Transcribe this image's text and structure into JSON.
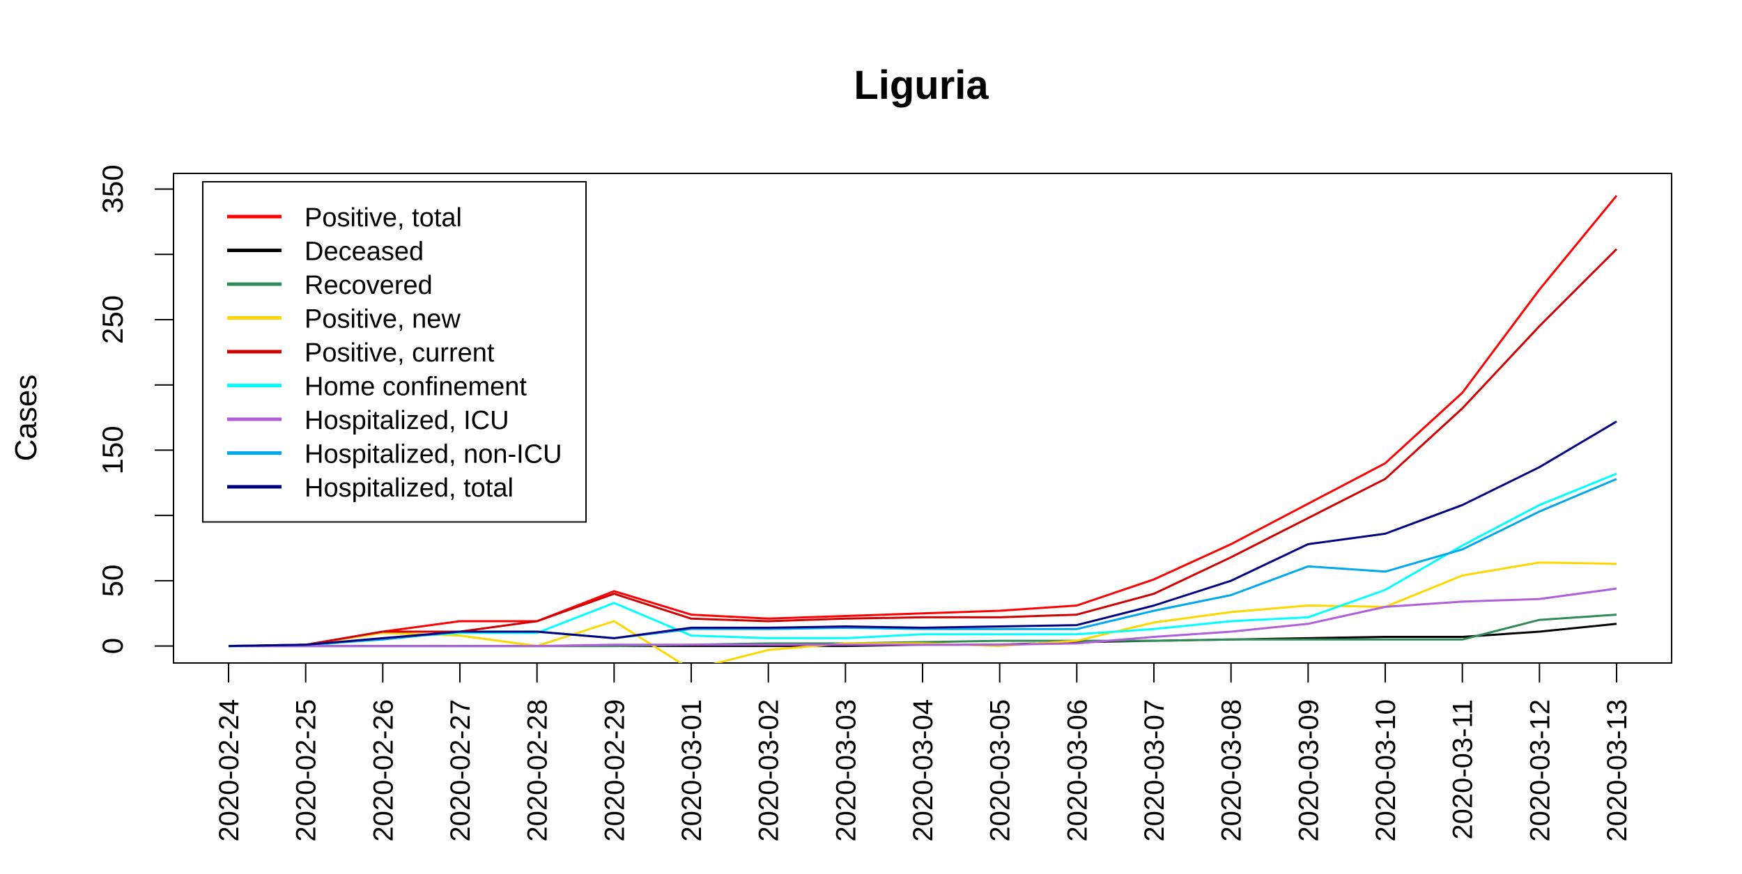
{
  "chart_data": {
    "type": "line",
    "title": "Liguria",
    "xlabel": "",
    "ylabel": "Cases",
    "ylim": [
      -13,
      362
    ],
    "yticks": [
      0,
      50,
      150,
      250,
      350
    ],
    "categories": [
      "2020-02-24",
      "2020-02-25",
      "2020-02-26",
      "2020-02-27",
      "2020-02-28",
      "2020-02-29",
      "2020-03-01",
      "2020-03-02",
      "2020-03-03",
      "2020-03-04",
      "2020-03-05",
      "2020-03-06",
      "2020-03-07",
      "2020-03-08",
      "2020-03-09",
      "2020-03-10",
      "2020-03-11",
      "2020-03-12",
      "2020-03-13"
    ],
    "legend_position": "top-left",
    "series": [
      {
        "name": "Positive, total",
        "color": "#ff0000",
        "values": [
          0,
          1,
          11,
          19,
          19,
          42,
          24,
          21,
          23,
          25,
          27,
          31,
          51,
          78,
          109,
          140,
          194,
          273,
          345
        ]
      },
      {
        "name": "Deceased",
        "color": "#000000",
        "values": [
          0,
          0,
          0,
          0,
          0,
          0,
          0,
          0,
          0,
          1,
          1,
          3,
          4,
          5,
          6,
          7,
          7,
          11,
          17
        ]
      },
      {
        "name": "Recovered",
        "color": "#2e8b57",
        "values": [
          0,
          0,
          0,
          0,
          0,
          0,
          1,
          2,
          2,
          3,
          4,
          4,
          4,
          5,
          5,
          5,
          5,
          20,
          24
        ]
      },
      {
        "name": "Positive, new",
        "color": "#ffd700",
        "values": [
          0,
          1,
          10,
          8,
          0,
          19,
          -18,
          -3,
          2,
          2,
          0,
          4,
          18,
          26,
          31,
          30,
          54,
          64,
          63
        ]
      },
      {
        "name": "Positive, current",
        "color": "#d00000",
        "values": [
          0,
          1,
          11,
          11,
          19,
          40,
          21,
          19,
          21,
          22,
          22,
          24,
          40,
          68,
          98,
          128,
          182,
          245,
          304
        ]
      },
      {
        "name": "Home confinement",
        "color": "#00ffff",
        "values": [
          0,
          0,
          6,
          10,
          10,
          33,
          8,
          6,
          6,
          9,
          9,
          9,
          13,
          19,
          22,
          43,
          77,
          108,
          132
        ]
      },
      {
        "name": "Hospitalized, ICU",
        "color": "#b05fdc",
        "values": [
          0,
          0,
          0,
          0,
          0,
          1,
          1,
          1,
          1,
          1,
          1,
          2,
          7,
          11,
          17,
          30,
          34,
          36,
          44
        ]
      },
      {
        "name": "Hospitalized, non-ICU",
        "color": "#00a8f0",
        "values": [
          0,
          1,
          5,
          11,
          11,
          6,
          13,
          13,
          14,
          13,
          13,
          13,
          27,
          39,
          61,
          57,
          74,
          103,
          128
        ]
      },
      {
        "name": "Hospitalized, total",
        "color": "#000080",
        "values": [
          0,
          1,
          6,
          11,
          11,
          6,
          14,
          14,
          15,
          14,
          15,
          16,
          31,
          50,
          78,
          86,
          108,
          137,
          172
        ]
      }
    ]
  }
}
